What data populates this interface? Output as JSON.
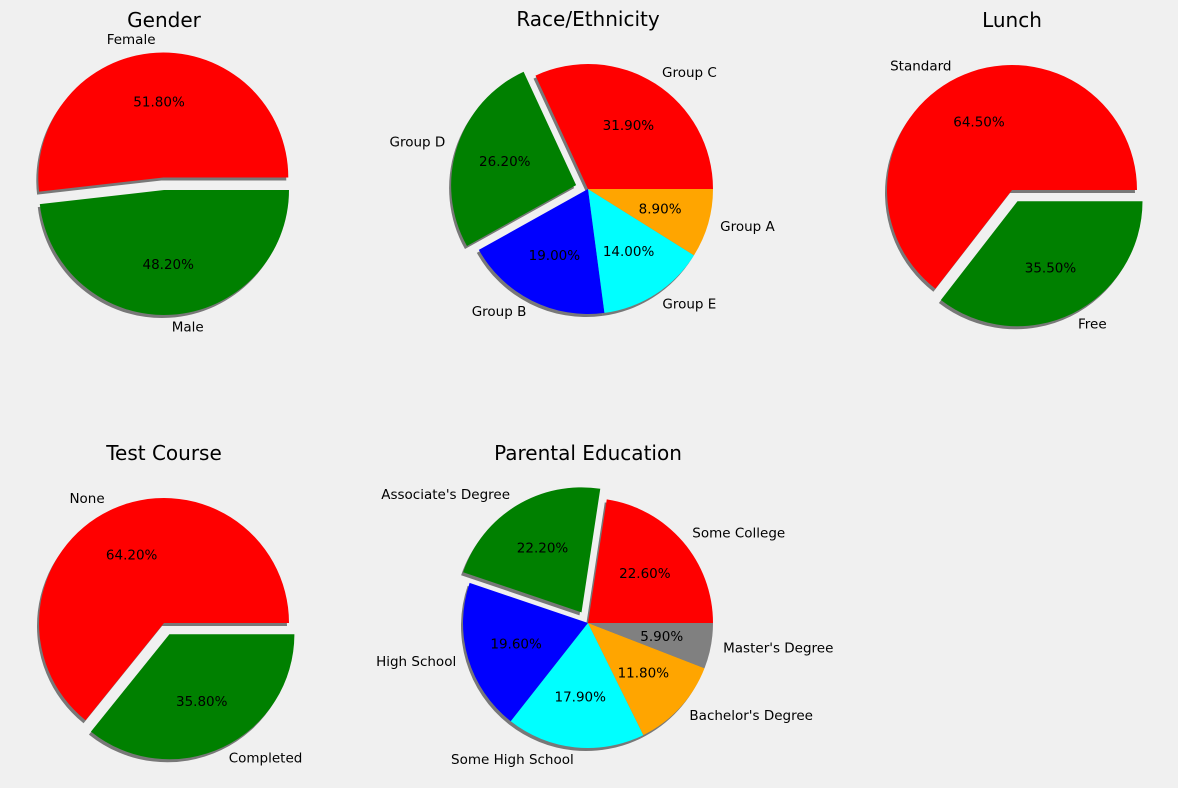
{
  "chart_data": [
    {
      "type": "pie",
      "title": "Gender",
      "slices": [
        {
          "label": "Female",
          "value": 51.8,
          "pct": "51.80%",
          "color": "#ff0000",
          "explode": true
        },
        {
          "label": "Male",
          "value": 48.2,
          "pct": "48.20%",
          "color": "#008000",
          "explode": false
        }
      ],
      "shadow": true
    },
    {
      "type": "pie",
      "title": "Race/Ethnicity",
      "slices": [
        {
          "label": "Group C",
          "value": 31.9,
          "pct": "31.90%",
          "color": "#ff0000",
          "explode": false
        },
        {
          "label": "Group D",
          "value": 26.2,
          "pct": "26.20%",
          "color": "#008000",
          "explode": true
        },
        {
          "label": "Group B",
          "value": 19.0,
          "pct": "19.00%",
          "color": "#0000ff",
          "explode": false
        },
        {
          "label": "Group E",
          "value": 14.0,
          "pct": "14.00%",
          "color": "#00ffff",
          "explode": false
        },
        {
          "label": "Group A",
          "value": 8.9,
          "pct": "8.90%",
          "color": "#ffa500",
          "explode": false
        }
      ],
      "shadow": true
    },
    {
      "type": "pie",
      "title": "Lunch",
      "slices": [
        {
          "label": "Standard",
          "value": 64.5,
          "pct": "64.50%",
          "color": "#ff0000",
          "explode": false
        },
        {
          "label": "Free",
          "value": 35.5,
          "pct": "35.50%",
          "color": "#008000",
          "explode": true
        }
      ],
      "shadow": true
    },
    {
      "type": "pie",
      "title": "Test Course",
      "slices": [
        {
          "label": "None",
          "value": 64.2,
          "pct": "64.20%",
          "color": "#ff0000",
          "explode": false
        },
        {
          "label": "Completed",
          "value": 35.8,
          "pct": "35.80%",
          "color": "#008000",
          "explode": true
        }
      ],
      "shadow": true
    },
    {
      "type": "pie",
      "title": "Parental Education",
      "slices": [
        {
          "label": "Some College",
          "value": 22.6,
          "pct": "22.60%",
          "color": "#ff0000",
          "explode": false
        },
        {
          "label": "Associate's Degree",
          "value": 22.2,
          "pct": "22.20%",
          "color": "#008000",
          "explode": true
        },
        {
          "label": "High School",
          "value": 19.6,
          "pct": "19.60%",
          "color": "#0000ff",
          "explode": false
        },
        {
          "label": "Some High School",
          "value": 17.9,
          "pct": "17.90%",
          "color": "#00ffff",
          "explode": false
        },
        {
          "label": "Bachelor's Degree",
          "value": 11.8,
          "pct": "11.80%",
          "color": "#ffa500",
          "explode": false
        },
        {
          "label": "Master's Degree",
          "value": 5.9,
          "pct": "5.90%",
          "color": "#808080",
          "explode": false
        }
      ],
      "shadow": true
    }
  ]
}
